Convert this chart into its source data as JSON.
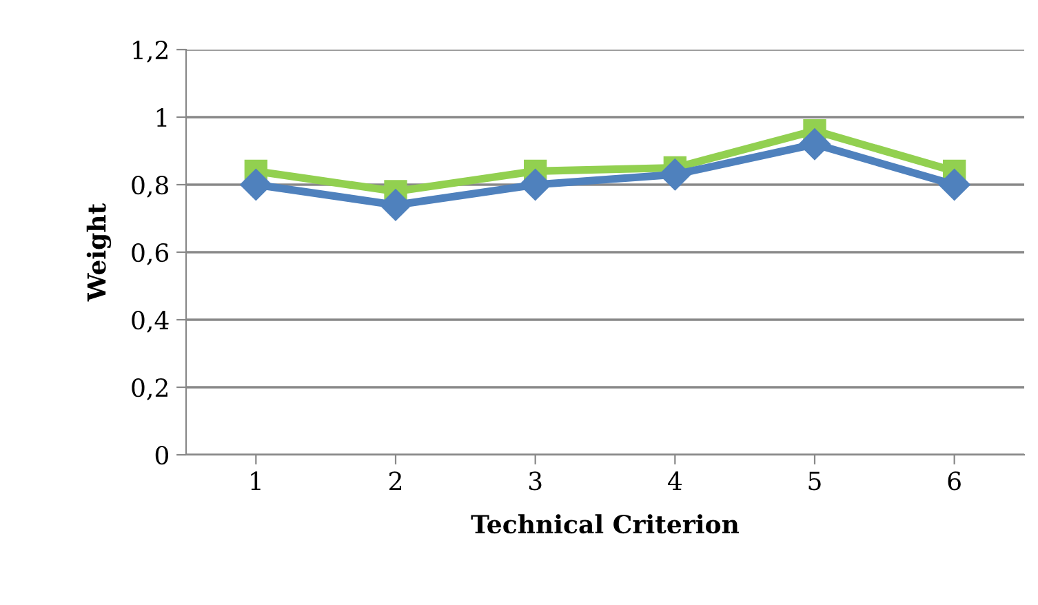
{
  "chart_data": {
    "type": "line",
    "xlabel": "Technical Criterion",
    "ylabel": "Weight",
    "categories": [
      "1",
      "2",
      "3",
      "4",
      "5",
      "6"
    ],
    "series": [
      {
        "color": "#4f81bd",
        "marker": "diamond",
        "values": [
          0.8,
          0.74,
          0.8,
          0.83,
          0.92,
          0.8
        ]
      },
      {
        "color": "#92d050",
        "marker": "square",
        "values": [
          0.84,
          0.78,
          0.84,
          0.85,
          0.96,
          0.84
        ]
      }
    ],
    "ylim": [
      0,
      1.2
    ],
    "yticks": [
      {
        "value": 0,
        "label": "0"
      },
      {
        "value": 0.2,
        "label": "0,2"
      },
      {
        "value": 0.4,
        "label": "0,4"
      },
      {
        "value": 0.6,
        "label": "0,6"
      },
      {
        "value": 0.8,
        "label": "0,8"
      },
      {
        "value": 1,
        "label": "1"
      },
      {
        "value": 1.2,
        "label": "1,2"
      }
    ],
    "grid": "y",
    "legend": false
  }
}
